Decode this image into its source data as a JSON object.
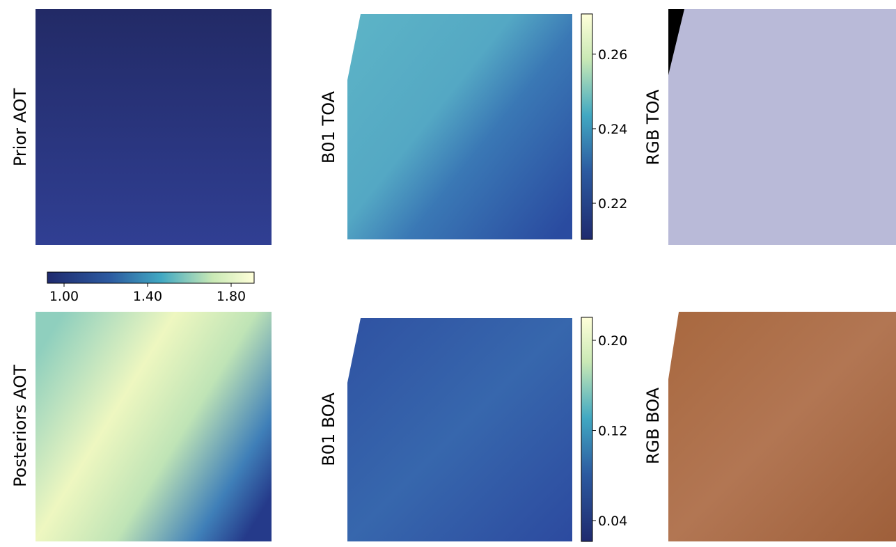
{
  "panels": [
    {
      "label": "Prior AOT"
    },
    {
      "label": "B01 TOA"
    },
    {
      "label": "RGB TOA"
    },
    {
      "label": "Posteriors AOT"
    },
    {
      "label": "B01 BOA"
    },
    {
      "label": "RGB BOA"
    }
  ],
  "colorbars": [
    {
      "orientation": "horizontal",
      "lim": [
        0.92,
        1.91
      ],
      "ticks": [
        {
          "value": 1.0,
          "label": "1.00"
        },
        {
          "value": 1.4,
          "label": "1.40"
        },
        {
          "value": 1.8,
          "label": "1.80"
        }
      ]
    },
    {
      "orientation": "vertical",
      "lim": [
        0.2103,
        0.2708
      ],
      "ticks": [
        {
          "value": 0.22,
          "label": "0.22"
        },
        {
          "value": 0.24,
          "label": "0.24"
        },
        {
          "value": 0.26,
          "label": "0.26"
        }
      ]
    },
    {
      "orientation": "vertical",
      "lim": [
        0.0215,
        0.2204
      ],
      "ticks": [
        {
          "value": 0.04,
          "label": "0.04"
        },
        {
          "value": 0.12,
          "label": "0.12"
        },
        {
          "value": 0.2,
          "label": "0.20"
        }
      ]
    }
  ]
}
